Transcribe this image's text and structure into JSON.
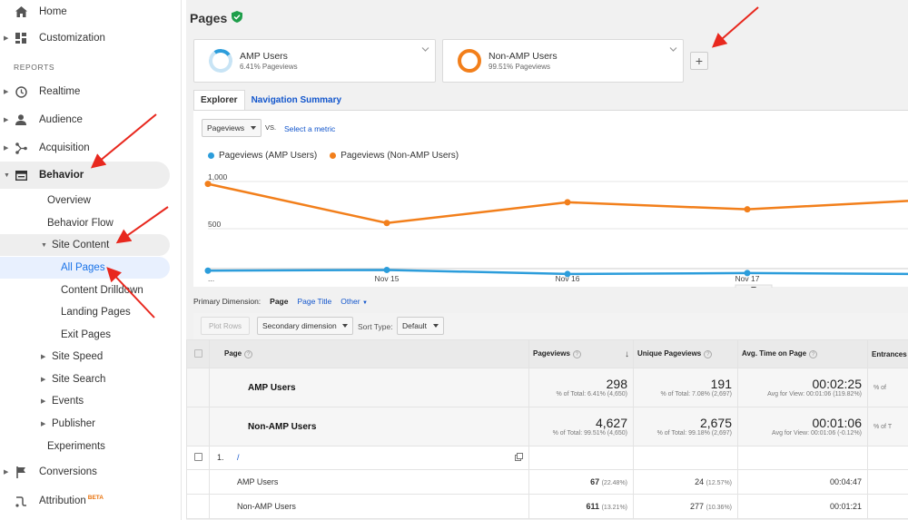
{
  "sidebar": {
    "home": "Home",
    "customization": "Customization",
    "reports_header": "REPORTS",
    "realtime": "Realtime",
    "audience": "Audience",
    "acquisition": "Acquisition",
    "behavior": "Behavior",
    "overview": "Overview",
    "behavior_flow": "Behavior Flow",
    "site_content": "Site Content",
    "all_pages": "All Pages",
    "content_drilldown": "Content Drilldown",
    "landing_pages": "Landing Pages",
    "exit_pages": "Exit Pages",
    "site_speed": "Site Speed",
    "site_search": "Site Search",
    "events": "Events",
    "publisher": "Publisher",
    "experiments": "Experiments",
    "conversions": "Conversions",
    "attribution": "Attribution",
    "beta": "BETA"
  },
  "page": {
    "title": "Pages"
  },
  "segments": [
    {
      "name": "AMP Users",
      "sub": "6.41% Pageviews",
      "color": "#2c9ddb"
    },
    {
      "name": "Non-AMP Users",
      "sub": "99.51% Pageviews",
      "color": "#f27f1b"
    }
  ],
  "tabs": {
    "explorer": "Explorer",
    "nav_summary": "Navigation Summary"
  },
  "metric": {
    "selected": "Pageviews",
    "vs": "VS.",
    "select_metric": "Select a metric"
  },
  "chart_data": {
    "type": "line",
    "x": [
      "",
      "Nov 15",
      "Nov 16",
      "Nov 17",
      ""
    ],
    "x_tick_labels": [
      "...",
      "Nov 15",
      "Nov 16",
      "Nov 17"
    ],
    "y_tick_labels": [
      "1,000",
      "500"
    ],
    "ylim": [
      0,
      1000
    ],
    "series": [
      {
        "name": "Pageviews (AMP Users)",
        "color": "#2c9ddb",
        "values": [
          55,
          63,
          20,
          30,
          20
        ]
      },
      {
        "name": "Pageviews (Non-AMP Users)",
        "color": "#f27f1b",
        "values": [
          975,
          560,
          780,
          705,
          795
        ]
      }
    ],
    "grid": true
  },
  "dimension": {
    "label": "Primary Dimension:",
    "page": "Page",
    "page_title": "Page Title",
    "other": "Other"
  },
  "toolbar": {
    "plot_rows": "Plot Rows",
    "secondary": "Secondary dimension",
    "sort_label": "Sort Type:",
    "sort_value": "Default"
  },
  "table": {
    "headers": {
      "page": "Page",
      "pageviews": "Pageviews",
      "unique": "Unique Pageviews",
      "avg_time": "Avg. Time on Page",
      "entrances": "Entrances"
    },
    "segment_rows": [
      {
        "label": "AMP Users",
        "pageviews": "298",
        "pageviews_pct": "% of Total: 6.41% (4,650)",
        "unique": "191",
        "unique_pct": "% of Total: 7.08% (2,697)",
        "avg": "00:02:25",
        "avg_pct": "Avg for View: 00:01:06 (119.82%)",
        "ent_pct": "% of"
      },
      {
        "label": "Non-AMP Users",
        "pageviews": "4,627",
        "pageviews_pct": "% of Total: 99.51% (4,650)",
        "unique": "2,675",
        "unique_pct": "% of Total: 99.18% (2,697)",
        "avg": "00:01:06",
        "avg_pct": "Avg for View: 00:01:06 (-0.12%)",
        "ent_pct": "% of T"
      }
    ],
    "row1": {
      "index": "1.",
      "page": "/"
    },
    "sub_rows": [
      {
        "label": "AMP Users",
        "pageviews": "67",
        "pv_pct": "(22.48%)",
        "unique": "24",
        "u_pct": "(12.57%)",
        "avg": "00:04:47"
      },
      {
        "label": "Non-AMP Users",
        "pageviews": "611",
        "pv_pct": "(13.21%)",
        "unique": "277",
        "u_pct": "(10.36%)",
        "avg": "00:01:21"
      }
    ]
  }
}
